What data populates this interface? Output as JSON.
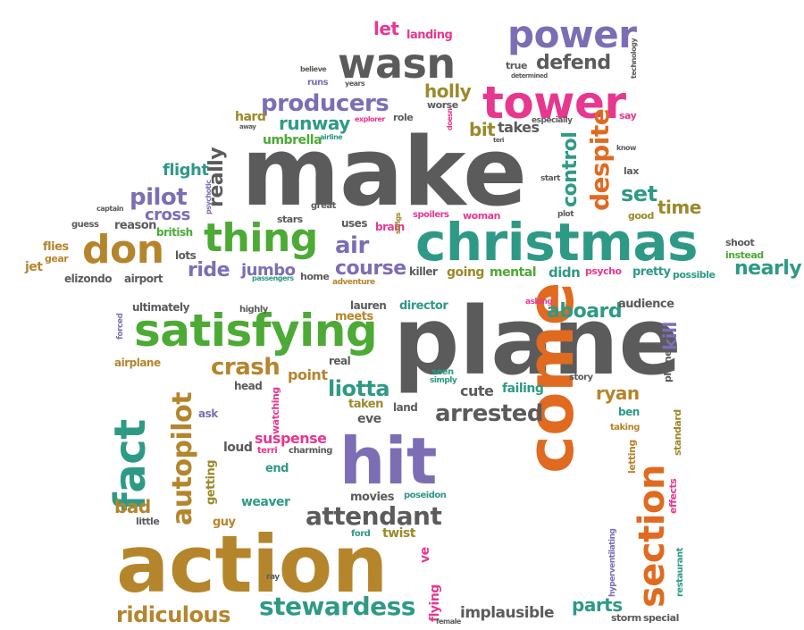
{
  "palette": {
    "gray": "#5b5b5b",
    "green": "#4caa35",
    "teal": "#2e9a86",
    "purple": "#7d6db5",
    "pink": "#e8378f",
    "orange": "#e06a20",
    "brown": "#b5852c",
    "olive": "#9a8a2a"
  },
  "words": [
    {
      "text": "make",
      "color": "gray"
    },
    {
      "text": "plane",
      "color": "gray"
    },
    {
      "text": "action",
      "color": "brown"
    },
    {
      "text": "christmas",
      "color": "teal"
    },
    {
      "text": "hit",
      "color": "purple"
    },
    {
      "text": "come",
      "color": "orange"
    },
    {
      "text": "satisfying",
      "color": "green"
    },
    {
      "text": "tower",
      "color": "pink"
    },
    {
      "text": "power",
      "color": "purple"
    },
    {
      "text": "wasn",
      "color": "gray"
    },
    {
      "text": "don",
      "color": "brown"
    },
    {
      "text": "thing",
      "color": "green"
    },
    {
      "text": "section",
      "color": "orange"
    },
    {
      "text": "fact",
      "color": "teal"
    },
    {
      "text": "autopilot",
      "color": "brown"
    },
    {
      "text": "producers",
      "color": "purple"
    },
    {
      "text": "despite",
      "color": "orange"
    },
    {
      "text": "stewardess",
      "color": "teal"
    },
    {
      "text": "attendant",
      "color": "gray"
    },
    {
      "text": "ridiculous",
      "color": "brown"
    },
    {
      "text": "crash",
      "color": "brown"
    },
    {
      "text": "arrested",
      "color": "gray"
    },
    {
      "text": "liotta",
      "color": "teal"
    },
    {
      "text": "pilot",
      "color": "purple"
    },
    {
      "text": "runway",
      "color": "teal"
    },
    {
      "text": "defend",
      "color": "gray"
    },
    {
      "text": "holly",
      "color": "olive"
    },
    {
      "text": "nearly",
      "color": "teal"
    },
    {
      "text": "course",
      "color": "purple"
    },
    {
      "text": "aboard",
      "color": "teal"
    },
    {
      "text": "ride",
      "color": "purple"
    },
    {
      "text": "air",
      "color": "purple"
    },
    {
      "text": "really",
      "color": "gray"
    },
    {
      "text": "control",
      "color": "teal"
    },
    {
      "text": "set",
      "color": "teal"
    },
    {
      "text": "time",
      "color": "olive"
    },
    {
      "text": "cross",
      "color": "purple"
    },
    {
      "text": "flight",
      "color": "teal"
    },
    {
      "text": "bit",
      "color": "olive"
    },
    {
      "text": "takes",
      "color": "gray"
    },
    {
      "text": "umbrella",
      "color": "green"
    },
    {
      "text": "hard",
      "color": "olive"
    },
    {
      "text": "let",
      "color": "pink"
    },
    {
      "text": "landing",
      "color": "pink"
    },
    {
      "text": "jumbo",
      "color": "purple"
    },
    {
      "text": "suspense",
      "color": "pink"
    },
    {
      "text": "kill",
      "color": "purple"
    },
    {
      "text": "ryan",
      "color": "brown"
    },
    {
      "text": "parts",
      "color": "teal"
    },
    {
      "text": "implausible",
      "color": "gray"
    },
    {
      "text": "bad",
      "color": "brown"
    },
    {
      "text": "point",
      "color": "brown"
    },
    {
      "text": "cute",
      "color": "gray"
    },
    {
      "text": "failing",
      "color": "teal"
    },
    {
      "text": "eve",
      "color": "gray"
    },
    {
      "text": "ve",
      "color": "pink"
    },
    {
      "text": "twist",
      "color": "olive"
    },
    {
      "text": "weaver",
      "color": "teal"
    },
    {
      "text": "movies",
      "color": "gray"
    },
    {
      "text": "poseidon",
      "color": "teal"
    },
    {
      "text": "getting",
      "color": "olive"
    },
    {
      "text": "little",
      "color": "gray"
    },
    {
      "text": "guy",
      "color": "brown"
    },
    {
      "text": "ford",
      "color": "teal"
    },
    {
      "text": "loud",
      "color": "gray"
    },
    {
      "text": "terri",
      "color": "pink"
    },
    {
      "text": "charming",
      "color": "gray"
    },
    {
      "text": "end",
      "color": "teal"
    },
    {
      "text": "watching",
      "color": "pink"
    },
    {
      "text": "taken",
      "color": "olive"
    },
    {
      "text": "land",
      "color": "gray"
    },
    {
      "text": "head",
      "color": "gray"
    },
    {
      "text": "real",
      "color": "gray"
    },
    {
      "text": "ask",
      "color": "purple"
    },
    {
      "text": "airplane",
      "color": "brown"
    },
    {
      "text": "forced",
      "color": "purple"
    },
    {
      "text": "ultimately",
      "color": "gray"
    },
    {
      "text": "highly",
      "color": "gray"
    },
    {
      "text": "meets",
      "color": "brown"
    },
    {
      "text": "lauren",
      "color": "gray"
    },
    {
      "text": "director",
      "color": "teal"
    },
    {
      "text": "asking",
      "color": "pink"
    },
    {
      "text": "audience",
      "color": "gray"
    },
    {
      "text": "seen",
      "color": "teal"
    },
    {
      "text": "simply",
      "color": "teal"
    },
    {
      "text": "story",
      "color": "gray"
    },
    {
      "text": "phone",
      "color": "gray"
    },
    {
      "text": "ben",
      "color": "teal"
    },
    {
      "text": "taking",
      "color": "brown"
    },
    {
      "text": "standard",
      "color": "olive"
    },
    {
      "text": "letting",
      "color": "brown"
    },
    {
      "text": "effects",
      "color": "pink"
    },
    {
      "text": "hyperventilating",
      "color": "purple"
    },
    {
      "text": "restaurant",
      "color": "teal"
    },
    {
      "text": "storm",
      "color": "gray"
    },
    {
      "text": "special",
      "color": "gray"
    },
    {
      "text": "flying",
      "color": "pink"
    },
    {
      "text": "female",
      "color": "gray"
    },
    {
      "text": "ray",
      "color": "gray"
    },
    {
      "text": "jet",
      "color": "brown"
    },
    {
      "text": "flies",
      "color": "brown"
    },
    {
      "text": "gear",
      "color": "brown"
    },
    {
      "text": "guess",
      "color": "gray"
    },
    {
      "text": "captain",
      "color": "gray"
    },
    {
      "text": "reason",
      "color": "gray"
    },
    {
      "text": "british",
      "color": "green"
    },
    {
      "text": "lots",
      "color": "gray"
    },
    {
      "text": "elizondo",
      "color": "gray"
    },
    {
      "text": "airport",
      "color": "gray"
    },
    {
      "text": "psychotic",
      "color": "purple"
    },
    {
      "text": "stars",
      "color": "gray"
    },
    {
      "text": "great",
      "color": "gray"
    },
    {
      "text": "uses",
      "color": "gray"
    },
    {
      "text": "brain",
      "color": "pink"
    },
    {
      "text": "songs",
      "color": "olive"
    },
    {
      "text": "spoilers",
      "color": "pink"
    },
    {
      "text": "woman",
      "color": "pink"
    },
    {
      "text": "plot",
      "color": "gray"
    },
    {
      "text": "start",
      "color": "gray"
    },
    {
      "text": "passengers",
      "color": "teal"
    },
    {
      "text": "home",
      "color": "gray"
    },
    {
      "text": "adventure",
      "color": "brown"
    },
    {
      "text": "killer",
      "color": "gray"
    },
    {
      "text": "going",
      "color": "olive"
    },
    {
      "text": "mental",
      "color": "green"
    },
    {
      "text": "didn",
      "color": "teal"
    },
    {
      "text": "psycho",
      "color": "pink"
    },
    {
      "text": "pretty",
      "color": "teal"
    },
    {
      "text": "possible",
      "color": "teal"
    },
    {
      "text": "shoot",
      "color": "gray"
    },
    {
      "text": "instead",
      "color": "green"
    },
    {
      "text": "lax",
      "color": "gray"
    },
    {
      "text": "good",
      "color": "olive"
    },
    {
      "text": "know",
      "color": "gray"
    },
    {
      "text": "say",
      "color": "pink"
    },
    {
      "text": "especially",
      "color": "gray"
    },
    {
      "text": "technology",
      "color": "gray"
    },
    {
      "text": "true",
      "color": "gray"
    },
    {
      "text": "determined",
      "color": "gray"
    },
    {
      "text": "worse",
      "color": "gray"
    },
    {
      "text": "role",
      "color": "gray"
    },
    {
      "text": "explorer",
      "color": "pink"
    },
    {
      "text": "airline",
      "color": "teal"
    },
    {
      "text": "doesn",
      "color": "pink"
    },
    {
      "text": "teri",
      "color": "gray"
    },
    {
      "text": "believe",
      "color": "gray"
    },
    {
      "text": "runs",
      "color": "purple"
    },
    {
      "text": "years",
      "color": "gray"
    },
    {
      "text": "away",
      "color": "gray"
    }
  ]
}
